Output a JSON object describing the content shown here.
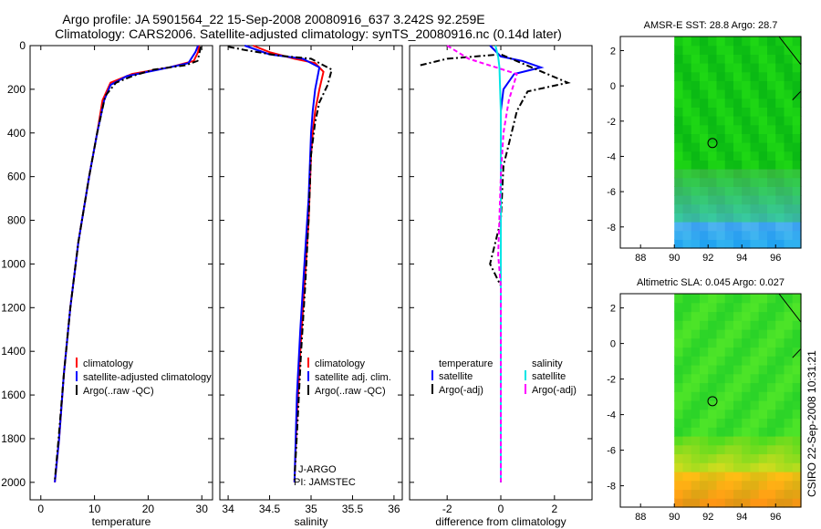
{
  "header": {
    "title_line1": "Argo profile: JA 5901564_22 15-Sep-2008 20080916_637 3.242S 92.259E",
    "title_line2": "Climatology: CARS2006. Satellite-adjusted climatology: synTS_20080916.nc (0.14d later)"
  },
  "footer": {
    "stamp": "CSIRO 22-Sep-2008 10:31:21"
  },
  "colors": {
    "climatology": "#ff0000",
    "satellite": "#0000ff",
    "argo": "#000000",
    "salinity_sat": "#00e5e5",
    "salinity_argo": "#ff00ff"
  },
  "chart_data": [
    {
      "id": "temperature",
      "type": "line",
      "xlabel": "temperature",
      "xlim": [
        -2,
        32
      ],
      "ylim": [
        2080,
        0
      ],
      "xticks": [
        0,
        10,
        20,
        30
      ],
      "yticks": [
        0,
        200,
        400,
        600,
        800,
        1000,
        1200,
        1400,
        1600,
        1800,
        2000
      ],
      "ytick_labels": [
        "0",
        "200",
        "400",
        "600",
        "800",
        "1000",
        "1200",
        "1400",
        "1600",
        "1800",
        "2000"
      ],
      "legend": [
        "climatology",
        "satellite-adjusted climatology",
        "Argo(..raw -QC)"
      ],
      "series": [
        {
          "name": "climatology",
          "style": "solid",
          "color": "#ff0000",
          "x": [
            29.5,
            29.3,
            28.5,
            24,
            17,
            13,
            11.5,
            10.5,
            9,
            7,
            5.5,
            4.3,
            3.4,
            2.6
          ],
          "y": [
            0,
            30,
            70,
            100,
            130,
            170,
            250,
            400,
            600,
            900,
            1200,
            1500,
            1800,
            2000
          ]
        },
        {
          "name": "satellite-adjusted climatology",
          "style": "solid",
          "color": "#0000ff",
          "x": [
            29.3,
            28.8,
            27.5,
            22,
            16,
            13,
            11.8,
            10.5,
            9,
            7,
            5.5,
            4.3,
            3.4,
            2.6
          ],
          "y": [
            0,
            30,
            80,
            110,
            140,
            180,
            250,
            400,
            600,
            900,
            1200,
            1500,
            1800,
            2000
          ]
        },
        {
          "name": "Argo(..raw -QC)",
          "style": "dashdot",
          "color": "#000000",
          "x": [
            29.8,
            29.5,
            29.2,
            27,
            21,
            17,
            14,
            12,
            10.5,
            9,
            7,
            5.5,
            4.3,
            3.3,
            2.6
          ],
          "y": [
            5,
            40,
            70,
            90,
            110,
            140,
            170,
            230,
            400,
            600,
            900,
            1200,
            1500,
            1800,
            1990
          ]
        }
      ]
    },
    {
      "id": "salinity",
      "type": "line",
      "xlabel": "salinity",
      "xlim": [
        33.9,
        36.1
      ],
      "ylim": [
        2080,
        0
      ],
      "xticks": [
        34,
        34.5,
        35,
        35.5,
        36
      ],
      "legend": [
        "climatology",
        "satellite adj. clim.",
        "Argo(..raw -QC)"
      ],
      "annotations": [
        "J-ARGO",
        "PI: JAMSTEC"
      ],
      "series": [
        {
          "name": "climatology",
          "style": "solid",
          "color": "#ff0000",
          "x": [
            34.3,
            34.5,
            34.8,
            35.05,
            35.15,
            35.1,
            35.05,
            35.02,
            35.0,
            34.97,
            34.92,
            34.87,
            34.83,
            34.8
          ],
          "y": [
            0,
            30,
            60,
            80,
            120,
            200,
            300,
            400,
            500,
            800,
            1100,
            1400,
            1700,
            2000
          ]
        },
        {
          "name": "satellite adj. clim.",
          "style": "solid",
          "color": "#0000ff",
          "x": [
            34.2,
            34.5,
            34.9,
            35.1,
            35.05,
            35.02,
            35.0,
            34.97,
            34.92,
            34.87,
            34.83,
            34.8
          ],
          "y": [
            0,
            40,
            60,
            100,
            200,
            300,
            400,
            700,
            1000,
            1300,
            1600,
            2000
          ]
        },
        {
          "name": "Argo(..raw -QC)",
          "style": "dashdot",
          "color": "#000000",
          "x": [
            34.0,
            34.2,
            34.6,
            35.0,
            35.25,
            35.2,
            35.1,
            35.05,
            35.0,
            34.97,
            34.93,
            34.88,
            34.84,
            34.8
          ],
          "y": [
            5,
            20,
            45,
            60,
            110,
            180,
            260,
            350,
            500,
            800,
            1100,
            1400,
            1700,
            1990
          ]
        }
      ]
    },
    {
      "id": "difference",
      "type": "line",
      "xlabel": "difference from climatology",
      "xlim": [
        -3.4,
        3.4
      ],
      "ylim": [
        2080,
        0
      ],
      "xticks": [
        -2,
        0,
        2
      ],
      "legend_temperature_title": "temperature",
      "legend_salinity_title": "salinity",
      "legend_temperature": [
        "satellite",
        "Argo(-adj)"
      ],
      "legend_salinity": [
        "satellite",
        "Argo(-adj)"
      ],
      "series": [
        {
          "name": "temperature satellite",
          "style": "solid",
          "color": "#0000ff",
          "x": [
            -0.4,
            0.0,
            0.8,
            1.5,
            0.5,
            0.1,
            0.0,
            0.0,
            0.0,
            0.0
          ],
          "y": [
            0,
            50,
            70,
            100,
            130,
            200,
            300,
            600,
            1200,
            2000
          ]
        },
        {
          "name": "temperature Argo(-adj)",
          "style": "dashdot",
          "color": "#000000",
          "x": [
            -3.0,
            -2.0,
            0.0,
            2.5,
            1.0,
            0.6,
            0.4,
            0.1,
            0.0,
            -0.4,
            0.0,
            0.0
          ],
          "y": [
            90,
            60,
            40,
            170,
            210,
            300,
            400,
            550,
            800,
            1000,
            1100,
            2000
          ]
        },
        {
          "name": "salinity satellite",
          "style": "solid",
          "color": "#00e5e5",
          "x": [
            -0.2,
            -0.1,
            -0.05,
            0.0,
            0.0,
            0.0
          ],
          "y": [
            0,
            50,
            100,
            300,
            1000,
            2000
          ]
        },
        {
          "name": "salinity Argo(-adj)",
          "style": "dash",
          "color": "#ff00ff",
          "x": [
            -2.0,
            -1.2,
            0.6,
            0.3,
            0.1,
            0.0,
            -0.1,
            0.0,
            0.0
          ],
          "y": [
            0,
            60,
            130,
            250,
            400,
            600,
            960,
            1100,
            2000
          ]
        }
      ]
    },
    {
      "id": "sst_map",
      "type": "heatmap",
      "title": "AMSR-E SST: 28.8 Argo: 28.7",
      "xlim": [
        86.8,
        97.5
      ],
      "ylim": [
        -9.2,
        2.8
      ],
      "xticks": [
        88,
        90,
        92,
        94,
        96
      ],
      "yticks": [
        2,
        0,
        -2,
        -4,
        -6,
        -8
      ],
      "marker": {
        "lon": 92.259,
        "lat": -3.242
      }
    },
    {
      "id": "sla_map",
      "type": "heatmap",
      "title": "Altimetric SLA: 0.045 Argo: 0.027",
      "xlim": [
        86.8,
        97.5
      ],
      "ylim": [
        -9.2,
        2.8
      ],
      "xticks": [
        88,
        90,
        92,
        94,
        96
      ],
      "yticks": [
        2,
        0,
        -2,
        -4,
        -6,
        -8
      ],
      "marker": {
        "lon": 92.259,
        "lat": -3.242
      }
    }
  ]
}
